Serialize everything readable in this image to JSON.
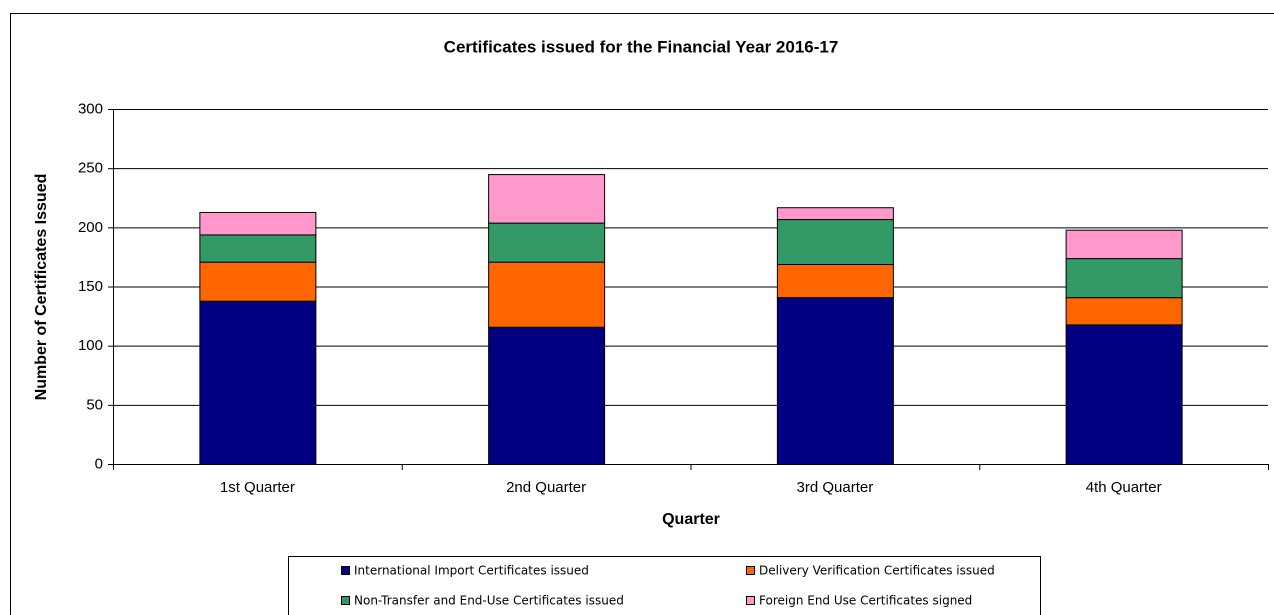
{
  "chart_data": {
    "type": "stacked_bar",
    "title": "Certificates issued for the Financial Year 2016-17",
    "x_label": "Quarter",
    "y_label": "Number of Certificates Issued",
    "categories": [
      "1st Quarter",
      "2nd Quarter",
      "3rd Quarter",
      "4th Quarter"
    ],
    "series": [
      {
        "name": "International Import Certificates issued",
        "color": "#000080",
        "values": [
          138,
          116,
          141,
          118
        ]
      },
      {
        "name": "Delivery Verification Certificates issued",
        "color": "#ff6600",
        "values": [
          33,
          55,
          28,
          23
        ]
      },
      {
        "name": "Non-Transfer and End-Use Certificates issued",
        "color": "#339966",
        "values": [
          23,
          33,
          38,
          33
        ]
      },
      {
        "name": "Foreign End Use Certificates signed",
        "color": "#ff99cc",
        "values": [
          19,
          41,
          10,
          24
        ]
      }
    ],
    "ylim": [
      0,
      300
    ],
    "yticks": [
      0,
      50,
      100,
      150,
      200,
      250,
      300
    ],
    "grid": true,
    "legend": "bottom"
  }
}
